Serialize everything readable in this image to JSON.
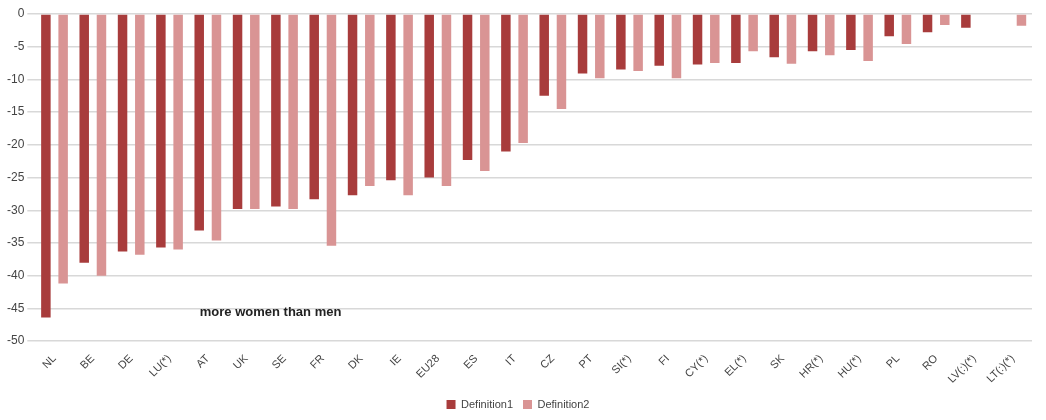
{
  "chart_data": {
    "type": "bar",
    "categories": [
      "NL",
      "BE",
      "DE",
      "LU(*)",
      "AT",
      "UK",
      "SE",
      "FR",
      "DK",
      "IE",
      "EU28",
      "ES",
      "IT",
      "CZ",
      "PT",
      "SI(*)",
      "FI",
      "CY(*)",
      "EL(*)",
      "SK",
      "HR(*)",
      "HU(*)",
      "PL",
      "RO",
      "LV(:)(*)",
      "LT(:)(*)"
    ],
    "series": [
      {
        "name": "Definition1",
        "color": "#a83c3c",
        "values": [
          -46.4,
          -38,
          -36.3,
          -35.7,
          -33.1,
          -29.8,
          -29.4,
          -28.3,
          -27.7,
          -25.4,
          -25,
          -22.3,
          -21,
          -12.5,
          -9.1,
          -8.5,
          -7.9,
          -7.7,
          -7.5,
          -6.6,
          -5.7,
          -5.5,
          -3.4,
          -2.8,
          -2.1,
          null
        ]
      },
      {
        "name": "Definition2",
        "color": "#d99494",
        "values": [
          -41.2,
          -40,
          -36.8,
          -36,
          -34.6,
          -29.8,
          -29.8,
          -35.4,
          -26.3,
          -27.7,
          -26.3,
          -24,
          -19.7,
          -14.5,
          -9.8,
          -8.7,
          -9.8,
          -7.5,
          -5.7,
          -7.6,
          -6.3,
          -7.2,
          -4.6,
          -1.7,
          null,
          -1.8
        ]
      }
    ],
    "ylim": [
      -50,
      0
    ],
    "yticks": [
      -50,
      -45,
      -40,
      -35,
      -30,
      -25,
      -20,
      -15,
      -10,
      -5,
      0
    ],
    "grid": "y",
    "legend": "bottom",
    "annotations": [
      "more women than men"
    ]
  }
}
